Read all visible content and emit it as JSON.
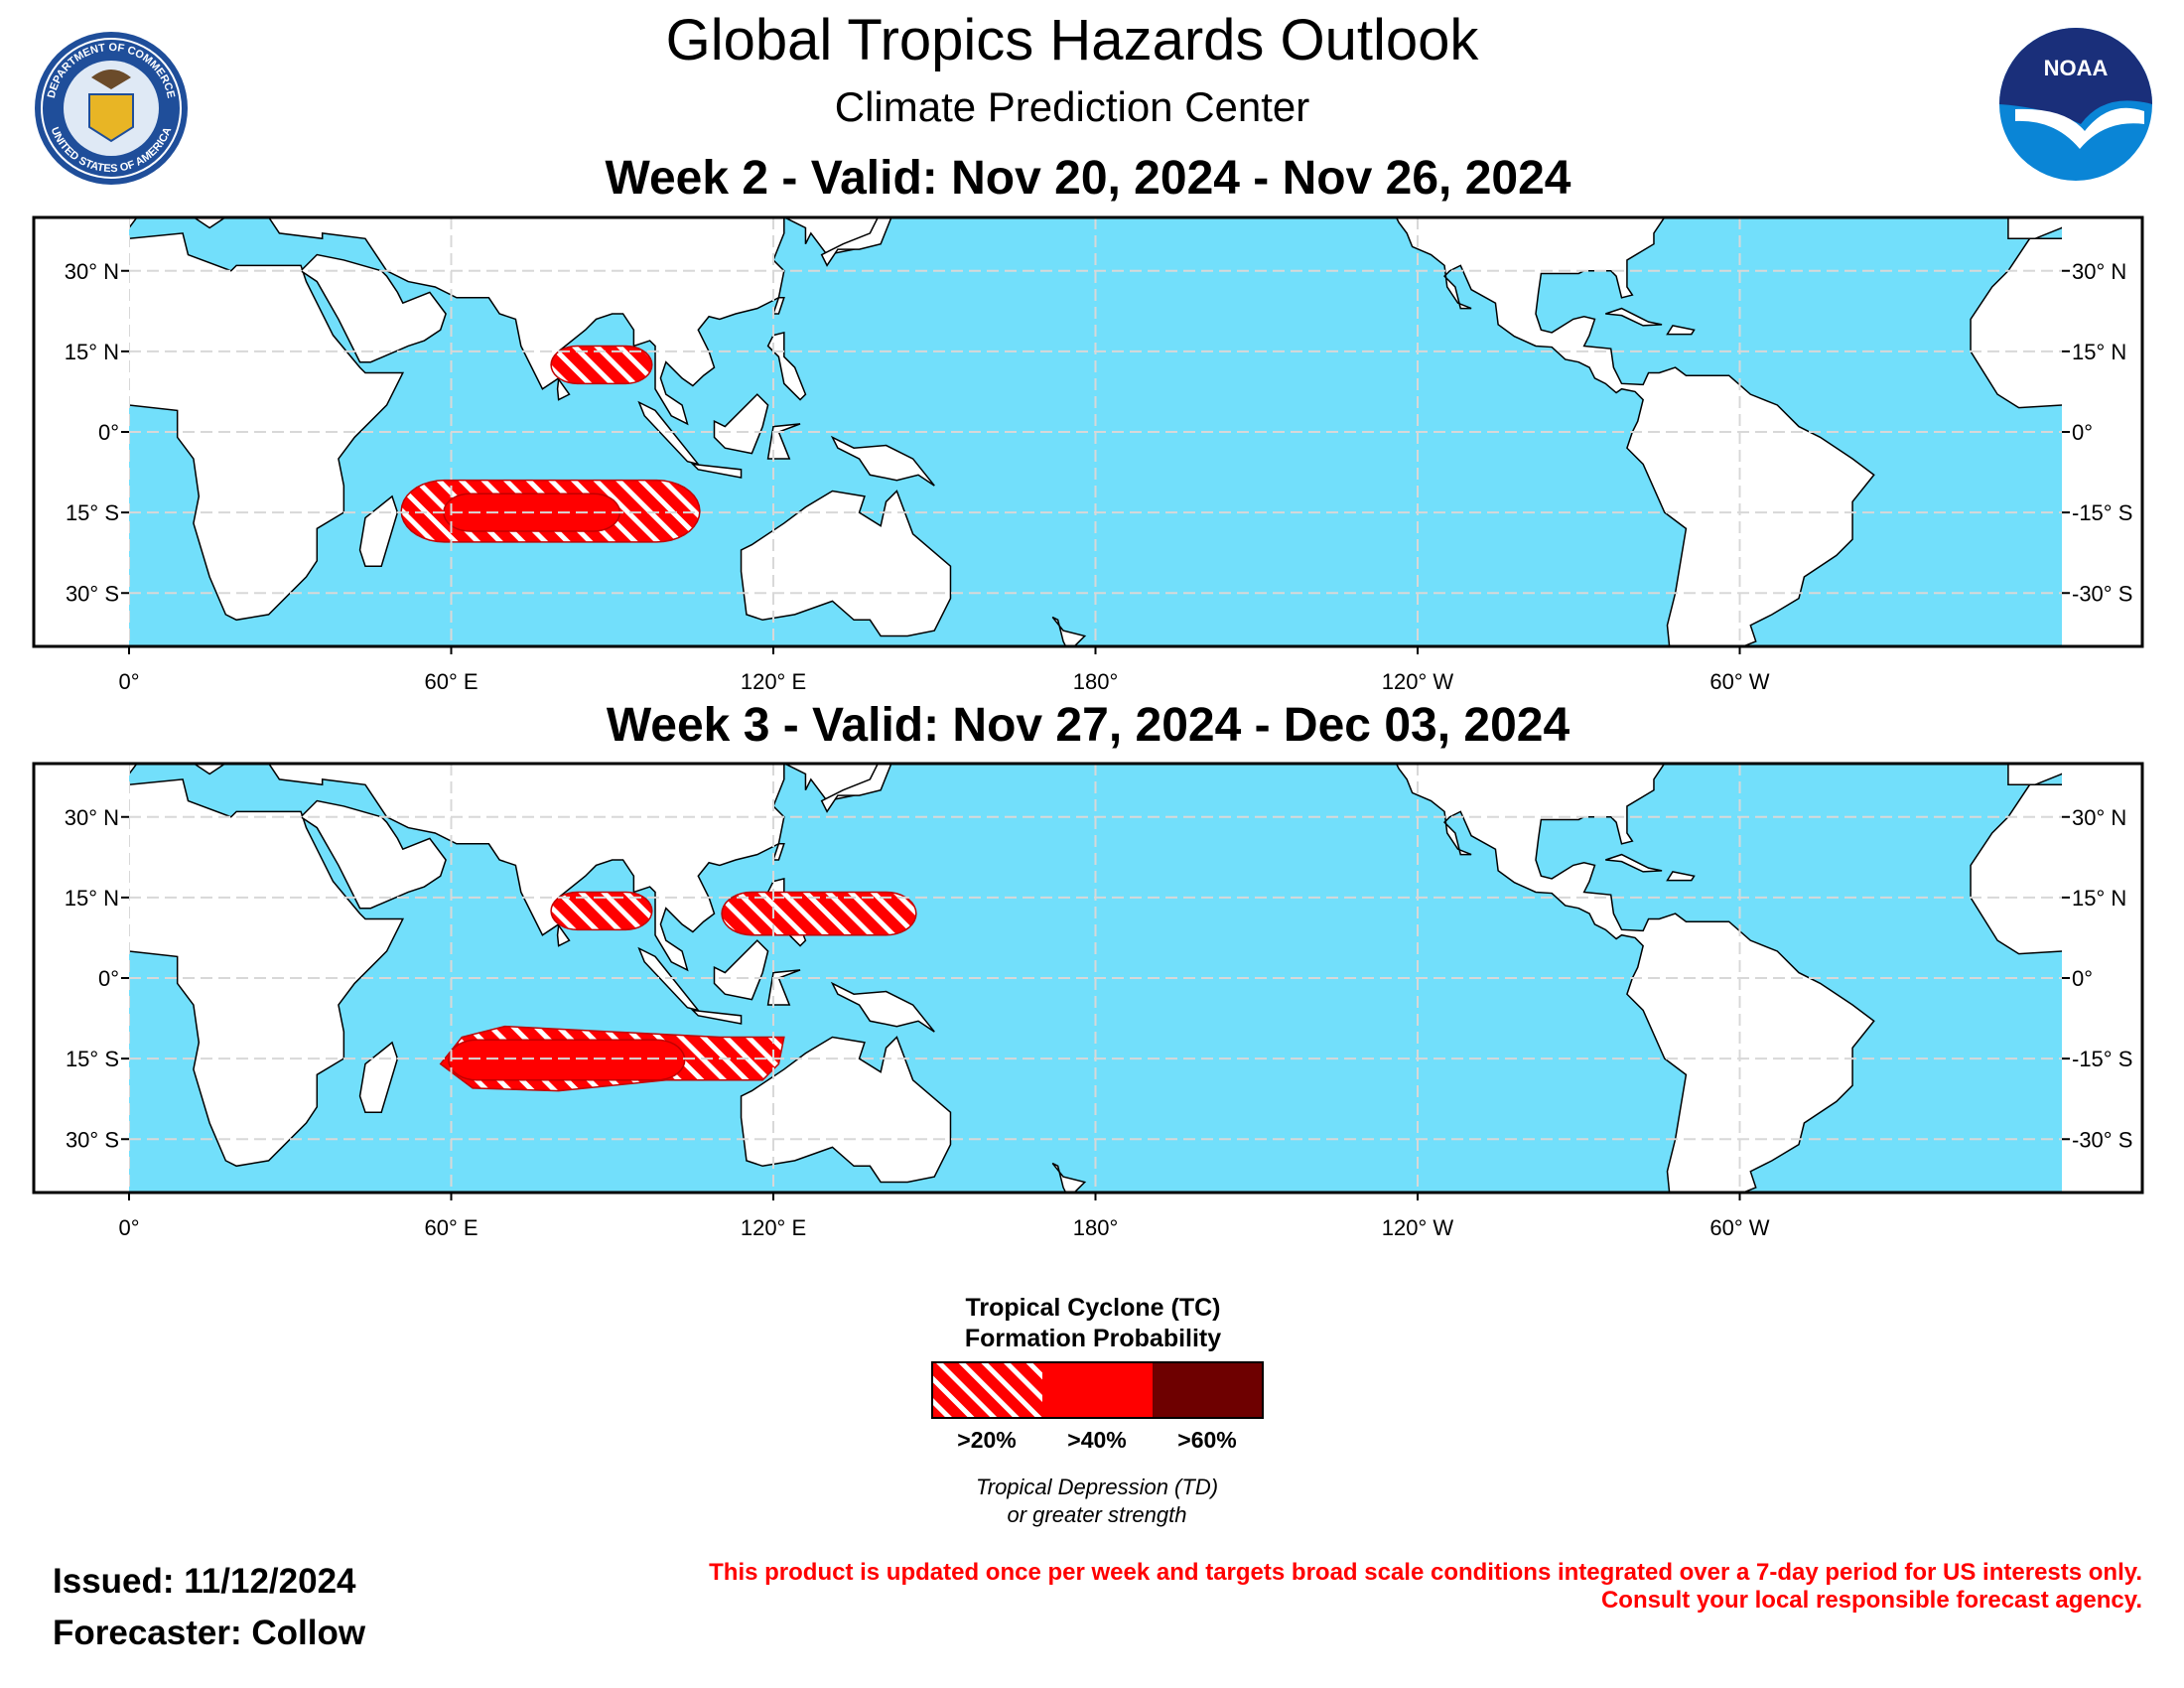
{
  "header": {
    "title": "Global Tropics Hazards Outlook",
    "subtitle": "Climate Prediction Center"
  },
  "logos": {
    "doc_top": "DEPARTMENT OF COMMERCE",
    "doc_bottom": "UNITED STATES OF AMERICA",
    "noaa": "NOAA"
  },
  "panels": [
    {
      "title": "Week 2 - Valid: Nov 20, 2024 - Nov 26, 2024"
    },
    {
      "title": "Week 3 - Valid: Nov 27, 2024 - Dec 03, 2024"
    }
  ],
  "map": {
    "lat_labels_left": [
      "30° N",
      "15° N",
      "0°",
      "15° S",
      "30° S"
    ],
    "lat_labels_right": [
      "30° N",
      "15° N",
      "0°",
      "-15° S",
      "-30° S"
    ],
    "lon_labels": [
      "0°",
      "60° E",
      "120° E",
      "180°",
      "120° W",
      "60° W"
    ]
  },
  "legend": {
    "title": [
      "Tropical Cyclone (TC)",
      "Formation Probability"
    ],
    "labels": [
      ">20%",
      ">40%",
      ">60%"
    ],
    "note": [
      "Tropical Depression (TD)",
      "or greater strength"
    ]
  },
  "footer": {
    "issued": "Issued: 11/12/2024",
    "forecaster": "Forecaster: Collow",
    "disclaimer": [
      "This product is updated once per week and targets broad scale conditions integrated over a 7-day period for US interests only.",
      "Consult your local responsible forecast agency."
    ]
  }
}
